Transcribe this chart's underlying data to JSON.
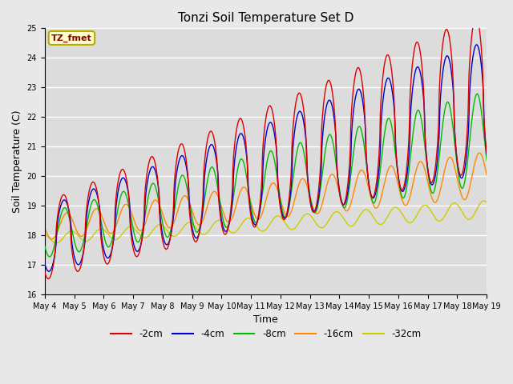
{
  "title": "Tonzi Soil Temperature Set D",
  "xlabel": "Time",
  "ylabel": "Soil Temperature (C)",
  "ylim": [
    16.0,
    25.0
  ],
  "yticks": [
    16.0,
    17.0,
    18.0,
    19.0,
    20.0,
    21.0,
    22.0,
    23.0,
    24.0,
    25.0
  ],
  "series_colors": [
    "#dd0000",
    "#0000cc",
    "#00bb00",
    "#ff8800",
    "#cccc00"
  ],
  "series_labels": [
    "-2cm",
    "-4cm",
    "-8cm",
    "-16cm",
    "-32cm"
  ],
  "annotation_text": "TZ_fmet",
  "annotation_bg": "#ffffcc",
  "annotation_border": "#bbaa00",
  "fig_bg": "#e8e8e8",
  "plot_bg": "#dcdcdc",
  "grid_color": "#ffffff",
  "tick_fontsize": 7,
  "title_fontsize": 11,
  "label_fontsize": 9
}
